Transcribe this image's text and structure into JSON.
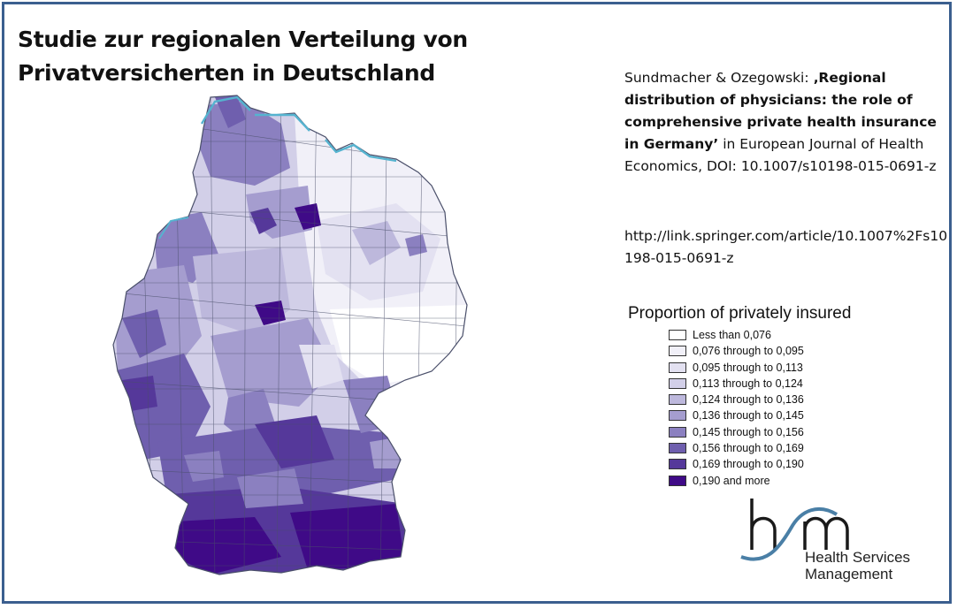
{
  "title": {
    "line1": "Studie zur regionalen Verteilung von",
    "line2": "Privatversicherten in Deutschland"
  },
  "reference": {
    "authors": "Sundmacher & Ozegowski: ",
    "paper_title": "‚Regional distribution of physicians: the role of comprehensive private health insurance in Germany’",
    "journal": " in European Journal of Health Economics, DOI: 10.1007/s10198-015-0691-z",
    "url": "http://link.springer.com/article/10.1007%2Fs10198-015-0691-z"
  },
  "legend": {
    "title": "Proportion of privately insured",
    "items": [
      {
        "label": "Less than  0,076",
        "color": "#ffffff"
      },
      {
        "label": "0,076  through to  0,095",
        "color": "#f1f0f8"
      },
      {
        "label": "0,095  through to  0,113",
        "color": "#e3e1f1"
      },
      {
        "label": "0,113  through to  0,124",
        "color": "#d2cfe8"
      },
      {
        "label": "0,124  through to  0,136",
        "color": "#bdb8dc"
      },
      {
        "label": "0,136  through to  0,145",
        "color": "#a59dcf"
      },
      {
        "label": "0,145  through to  0,156",
        "color": "#8b80c0"
      },
      {
        "label": "0,156  through to  0,169",
        "color": "#6f5fae"
      },
      {
        "label": "0,169  through to  0,190",
        "color": "#55389a"
      },
      {
        "label": "0,190  and more",
        "color": "#3f0a87"
      }
    ]
  },
  "logo": {
    "line1": "Health Services",
    "line2": "Management",
    "accent_color": "#4a7fa6",
    "glyph_color": "#1a1a1a"
  },
  "map_colors": {
    "border": "#4a4f6a",
    "coast": "#55b3cf"
  }
}
